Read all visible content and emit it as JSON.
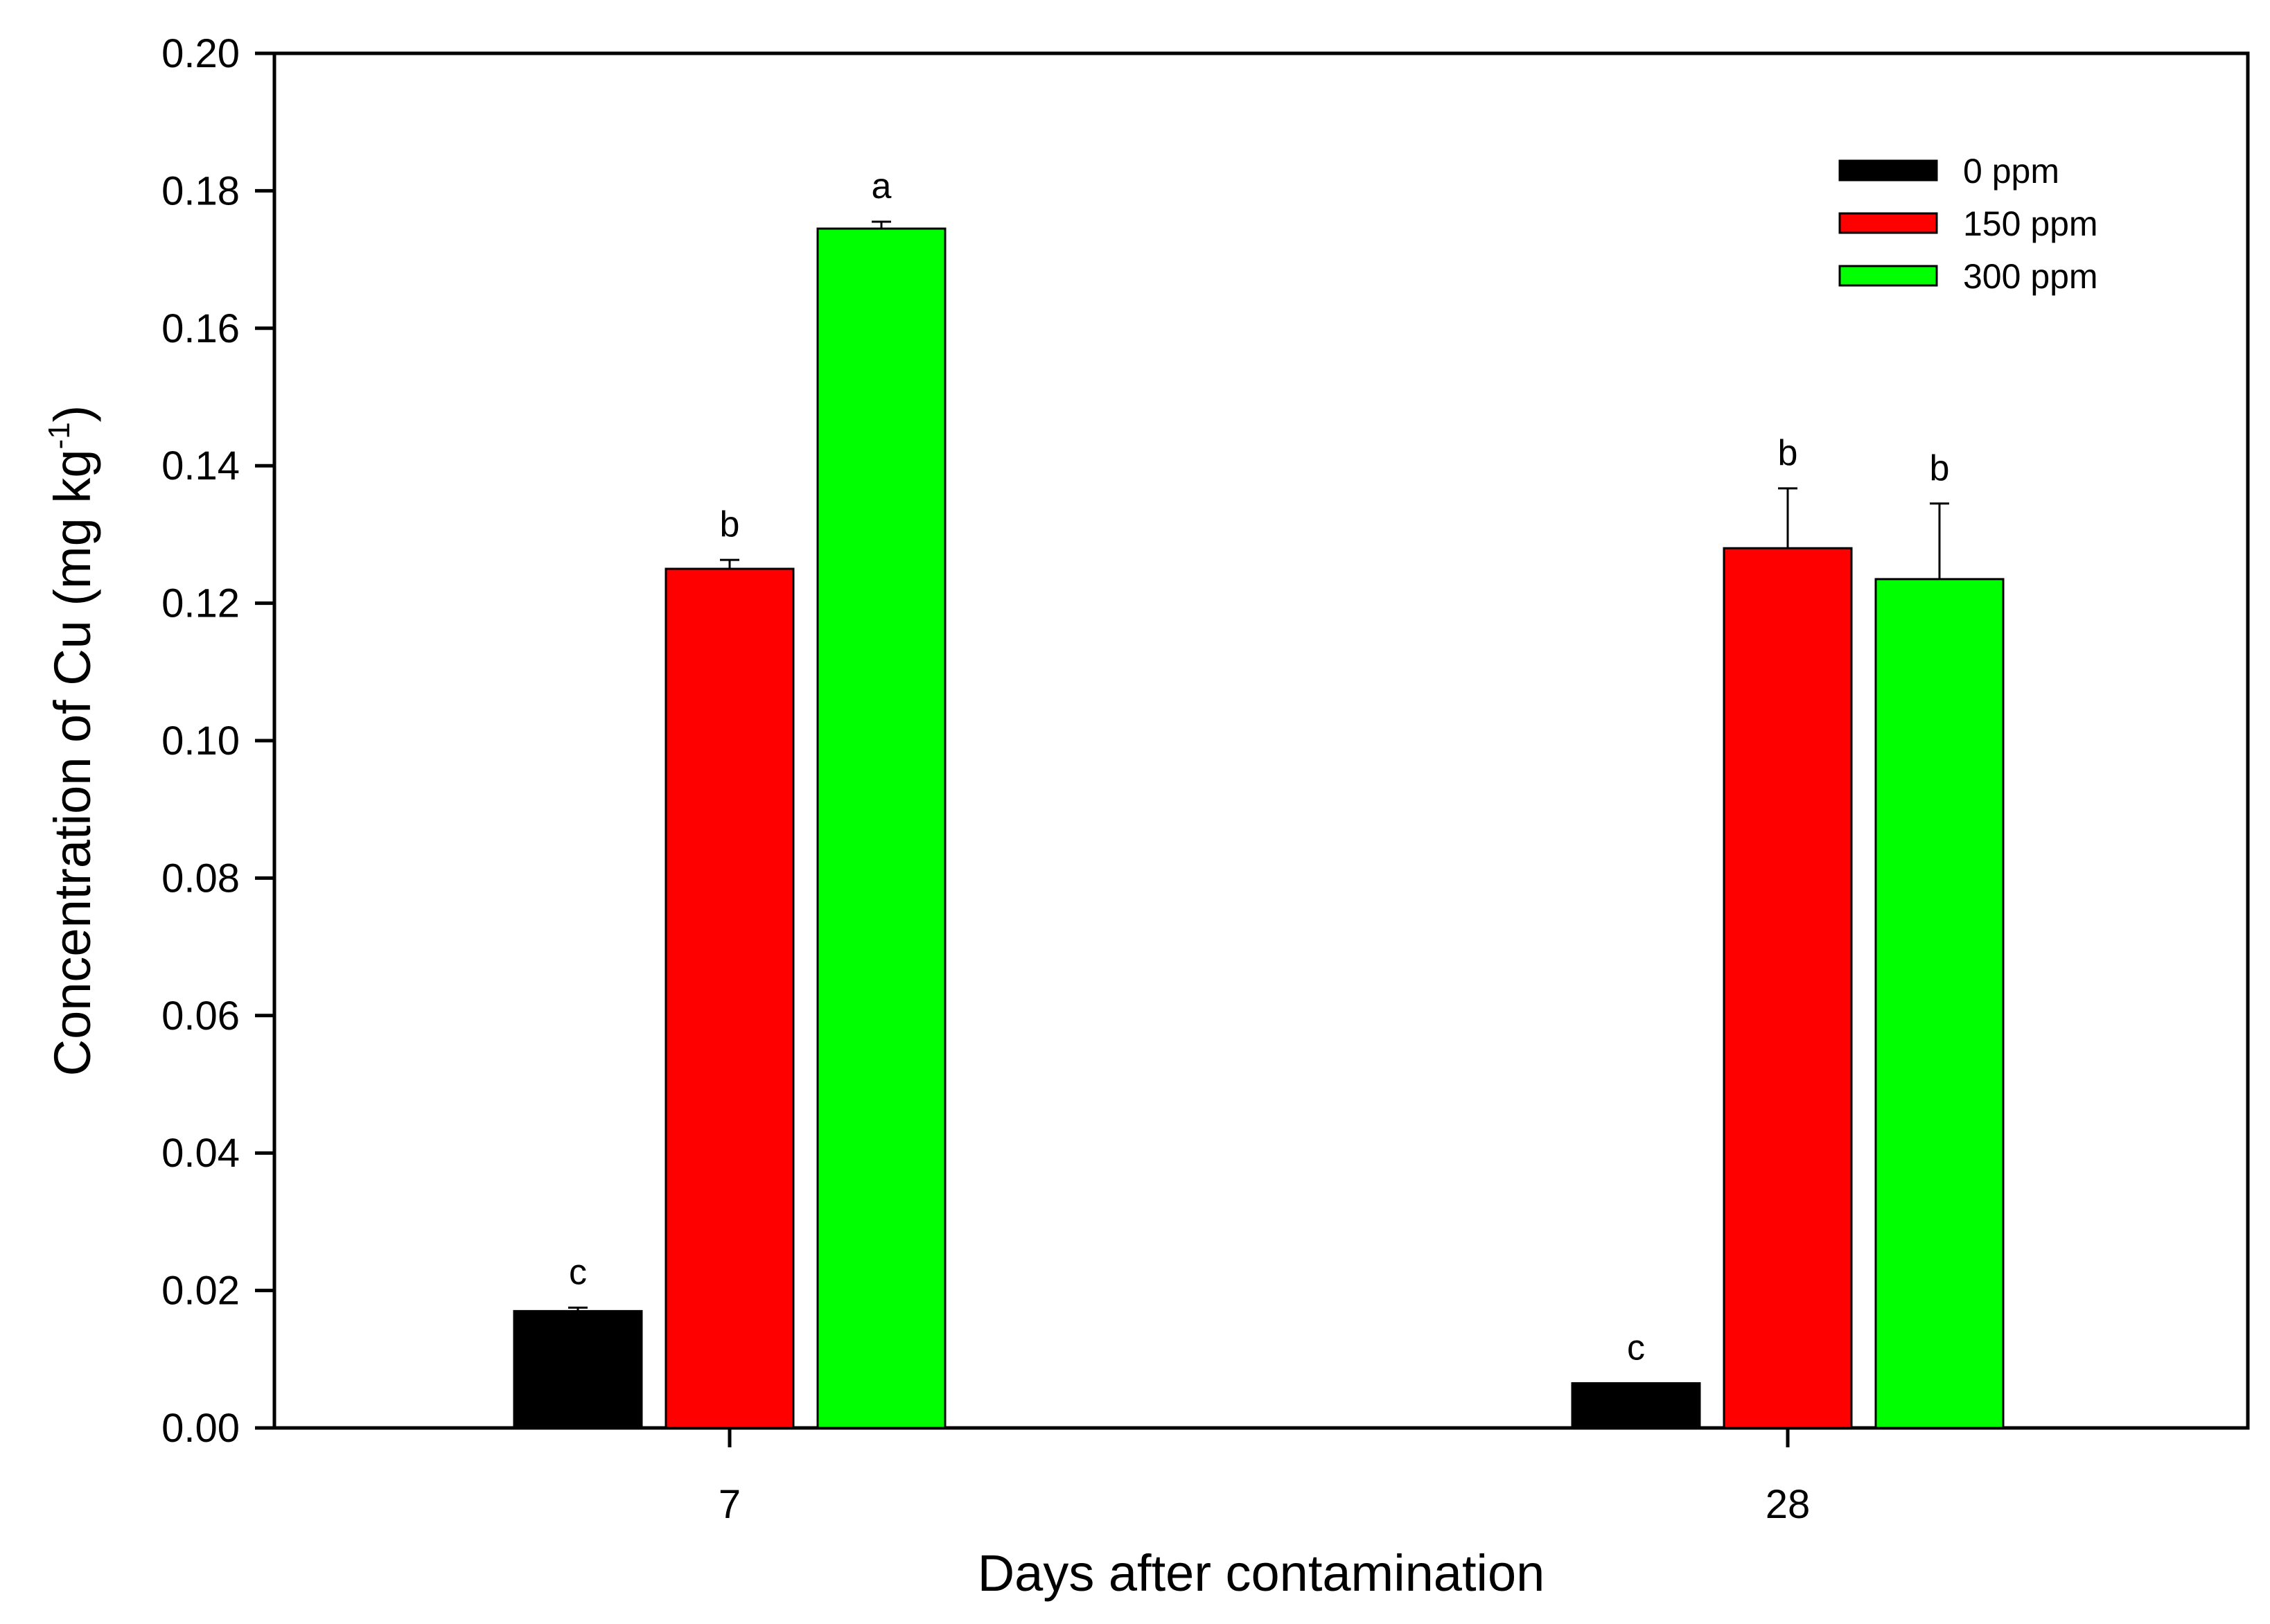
{
  "chart_data": {
    "type": "bar",
    "title": "",
    "xlabel": "Days after contamination",
    "ylabel": "Concentration of Cu (mg kg",
    "ylabel_superscript": "-1",
    "ylabel_suffix": ")",
    "categories": [
      "7",
      "28"
    ],
    "ylim": [
      0,
      0.2
    ],
    "yticks": [
      0.0,
      0.02,
      0.04,
      0.06,
      0.08,
      0.1,
      0.12,
      0.14,
      0.16,
      0.18,
      0.2
    ],
    "ytick_labels": [
      "0.00",
      "0.02",
      "0.04",
      "0.06",
      "0.08",
      "0.10",
      "0.12",
      "0.14",
      "0.16",
      "0.18",
      "0.20"
    ],
    "grid": false,
    "legend_position": "top-right",
    "series": [
      {
        "name": "0 ppm",
        "color": "#000000",
        "values": [
          0.017,
          0.0065
        ],
        "errors": [
          0.0005,
          0.0
        ],
        "significance": [
          "c",
          "c"
        ]
      },
      {
        "name": "150 ppm",
        "color": "#ff0000",
        "values": [
          0.125,
          0.128
        ],
        "errors": [
          0.0013,
          0.0087
        ],
        "significance": [
          "b",
          "b"
        ]
      },
      {
        "name": "300 ppm",
        "color": "#00ff00",
        "values": [
          0.1745,
          0.1235
        ],
        "errors": [
          0.001,
          0.011
        ],
        "significance": [
          "a",
          "b"
        ]
      }
    ]
  }
}
